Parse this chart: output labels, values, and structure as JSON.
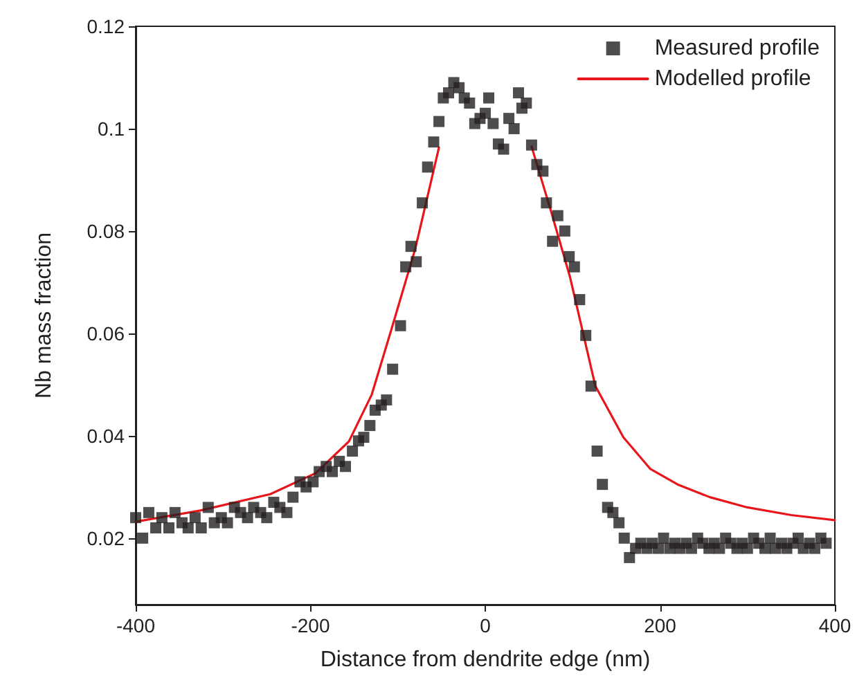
{
  "chart_data": {
    "type": "scatter",
    "xlabel": "Distance from dendrite edge (nm)",
    "ylabel": "Nb mass fraction",
    "xlim": [
      -400,
      400
    ],
    "xticks": [
      -400,
      -200,
      0,
      200,
      400
    ],
    "ylim": [
      0.007,
      0.12
    ],
    "yticks": [
      0.02,
      0.04,
      0.06,
      0.08,
      0.1,
      0.12
    ],
    "grid": false,
    "legend": "top right",
    "series": [
      {
        "name": "Measured profile",
        "marker": "square",
        "color": "#231f20",
        "x": [
          -400,
          -392,
          -385,
          -377,
          -370,
          -362,
          -355,
          -347,
          -340,
          -332,
          -325,
          -317,
          -310,
          -302,
          -295,
          -287,
          -280,
          -272,
          -265,
          -257,
          -250,
          -242,
          -235,
          -227,
          -220,
          -212,
          -205,
          -197,
          -190,
          -182,
          -175,
          -167,
          -160,
          -152,
          -145,
          -139,
          -132,
          -126,
          -119,
          -113,
          -106,
          -97,
          -91,
          -85,
          -79,
          -72,
          -66,
          -59,
          -53,
          -48,
          -42,
          -36,
          -30,
          -24,
          -18,
          -12,
          -6,
          0,
          4,
          9,
          15,
          21,
          27,
          33,
          38,
          42,
          47,
          53,
          59,
          66,
          70,
          77,
          83,
          91,
          96,
          102,
          108,
          115,
          121,
          128,
          134,
          140,
          146,
          153,
          159,
          165,
          172,
          178,
          185,
          191,
          198,
          204,
          211,
          217,
          223,
          230,
          236,
          243,
          249,
          256,
          262,
          268,
          275,
          281,
          288,
          294,
          300,
          307,
          313,
          320,
          326,
          332,
          339,
          345,
          352,
          358,
          364,
          371,
          377,
          384,
          390
        ],
        "values": [
          0.024,
          0.02,
          0.025,
          0.022,
          0.024,
          0.022,
          0.025,
          0.023,
          0.022,
          0.024,
          0.022,
          0.026,
          0.023,
          0.024,
          0.023,
          0.026,
          0.025,
          0.024,
          0.026,
          0.025,
          0.024,
          0.027,
          0.026,
          0.025,
          0.028,
          0.031,
          0.03,
          0.031,
          0.033,
          0.034,
          0.033,
          0.035,
          0.034,
          0.037,
          0.039,
          0.0397,
          0.042,
          0.045,
          0.046,
          0.047,
          0.053,
          0.0615,
          0.073,
          0.077,
          0.074,
          0.0855,
          0.0925,
          0.0974,
          0.1014,
          0.106,
          0.107,
          0.109,
          0.108,
          0.106,
          0.105,
          0.101,
          0.102,
          0.103,
          0.106,
          0.101,
          0.097,
          0.096,
          0.102,
          0.1,
          0.107,
          0.104,
          0.105,
          0.0968,
          0.093,
          0.0917,
          0.0855,
          0.078,
          0.083,
          0.08,
          0.075,
          0.073,
          0.0666,
          0.0596,
          0.0497,
          0.037,
          0.0305,
          0.026,
          0.025,
          0.023,
          0.02,
          0.0162,
          0.018,
          0.019,
          0.018,
          0.019,
          0.018,
          0.02,
          0.018,
          0.019,
          0.018,
          0.019,
          0.018,
          0.02,
          0.019,
          0.018,
          0.019,
          0.018,
          0.02,
          0.019,
          0.018,
          0.019,
          0.018,
          0.02,
          0.019,
          0.018,
          0.02,
          0.018,
          0.019,
          0.018,
          0.019,
          0.02,
          0.018,
          0.019,
          0.018,
          0.02,
          0.019
        ]
      },
      {
        "name": "Modelled profile",
        "type": "line",
        "marker": "none",
        "line_style": "solid",
        "color": "#e8161b",
        "x": [
          -400,
          -326,
          -246,
          -194,
          -156,
          -130,
          -107,
          -80,
          -53,
          0,
          53,
          75,
          97,
          126,
          158,
          189,
          220,
          257,
          300,
          350,
          400
        ],
        "values": [
          0.0232,
          0.0254,
          0.0286,
          0.0327,
          0.0389,
          0.048,
          0.061,
          0.0766,
          0.0963,
          null,
          0.0965,
          0.084,
          0.071,
          0.0497,
          0.0397,
          0.0335,
          0.0305,
          0.028,
          0.026,
          0.0245,
          0.0235
        ]
      }
    ]
  }
}
